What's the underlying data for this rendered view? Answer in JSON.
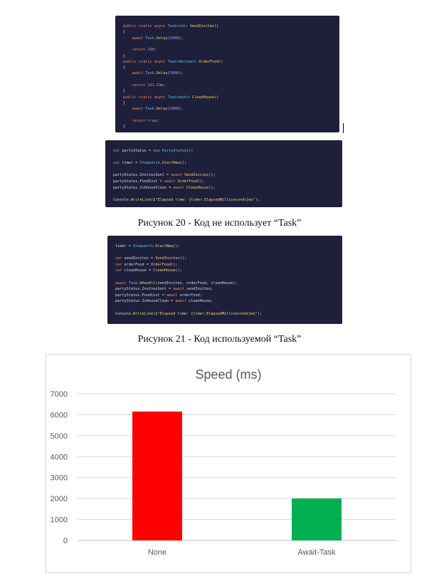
{
  "code_block_1": {
    "lines": [
      [
        [
          "public static async ",
          "kw"
        ],
        [
          "Task<int>",
          "ty"
        ],
        [
          " SendInvites()",
          "fn"
        ]
      ],
      [
        [
          "{",
          ""
        ]
      ],
      [
        [
          "    await ",
          "kw"
        ],
        [
          "Task",
          "ty"
        ],
        [
          ".",
          ""
        ],
        [
          "Delay",
          "fn"
        ],
        [
          "(",
          ""
        ],
        [
          "2000",
          "nm"
        ],
        [
          ");",
          ""
        ]
      ],
      [
        [
          "",
          ""
        ]
      ],
      [
        [
          "    return ",
          "kw"
        ],
        [
          "100",
          "nm"
        ],
        [
          ";",
          ""
        ]
      ],
      [
        [
          "}",
          ""
        ]
      ],
      [
        [
          "public static async ",
          "kw"
        ],
        [
          "Task<decimal>",
          "ty"
        ],
        [
          " OrderFood()",
          "fn"
        ]
      ],
      [
        [
          "{",
          ""
        ]
      ],
      [
        [
          "    await ",
          "kw"
        ],
        [
          "Task",
          "ty"
        ],
        [
          ".",
          ""
        ],
        [
          "Delay",
          "fn"
        ],
        [
          "(",
          ""
        ],
        [
          "3000",
          "nm"
        ],
        [
          ");",
          ""
        ]
      ],
      [
        [
          "",
          ""
        ]
      ],
      [
        [
          "    return ",
          "kw"
        ],
        [
          "121.23m",
          "nm"
        ],
        [
          ";",
          ""
        ]
      ],
      [
        [
          "}",
          ""
        ]
      ],
      [
        [
          "public static async ",
          "kw"
        ],
        [
          "Task<bool>",
          "ty"
        ],
        [
          " CleanHouse()",
          "fn"
        ]
      ],
      [
        [
          "{",
          ""
        ]
      ],
      [
        [
          "    await ",
          "kw"
        ],
        [
          "Task",
          "ty"
        ],
        [
          ".",
          ""
        ],
        [
          "Delay",
          "fn"
        ],
        [
          "(",
          ""
        ],
        [
          "2000",
          "nm"
        ],
        [
          ");",
          ""
        ]
      ],
      [
        [
          "",
          ""
        ]
      ],
      [
        [
          "    return ",
          "kw"
        ],
        [
          "true",
          "nm"
        ],
        [
          ";",
          ""
        ]
      ],
      [
        [
          "}",
          ""
        ]
      ]
    ]
  },
  "code_block_2": {
    "lines": [
      [
        [
          "var ",
          "kw"
        ],
        [
          "partyStatus = ",
          ""
        ],
        [
          "new ",
          "kw"
        ],
        [
          "PartyStatus",
          "ty"
        ],
        [
          "();",
          ""
        ]
      ],
      [
        [
          "",
          ""
        ]
      ],
      [
        [
          "var ",
          "kw"
        ],
        [
          "timer = ",
          ""
        ],
        [
          "Stopwatch",
          "ty"
        ],
        [
          ".",
          ""
        ],
        [
          "StartNew",
          "fn"
        ],
        [
          "();",
          ""
        ]
      ],
      [
        [
          "",
          ""
        ]
      ],
      [
        [
          "partyStatus.InvitesSent = ",
          ""
        ],
        [
          "await ",
          "kw"
        ],
        [
          "SendInvites",
          "fn"
        ],
        [
          "();",
          ""
        ]
      ],
      [
        [
          "partyStatus.FoodCost = ",
          ""
        ],
        [
          "await ",
          "kw"
        ],
        [
          "OrderFood",
          "fn"
        ],
        [
          "();",
          ""
        ]
      ],
      [
        [
          "partyStatus.IsHouseClean = ",
          ""
        ],
        [
          "await ",
          "kw"
        ],
        [
          "CleanHouse",
          "fn"
        ],
        [
          "();",
          ""
        ]
      ],
      [
        [
          "",
          ""
        ]
      ],
      [
        [
          "Console",
          ""
        ],
        [
          ".",
          ""
        ],
        [
          "WriteLine",
          "fn"
        ],
        [
          "($\"Elapsed time: {timer.ElapsedMilliseconds}ms\");",
          "st"
        ]
      ]
    ]
  },
  "caption_1": "Рисунок 20 - Код не использует “Task”",
  "code_block_3": {
    "lines": [
      [
        [
          "timer = ",
          ""
        ],
        [
          "Stopwatch",
          "ty"
        ],
        [
          ".",
          ""
        ],
        [
          "StartNew",
          "fn"
        ],
        [
          "();",
          ""
        ]
      ],
      [
        [
          "",
          ""
        ]
      ],
      [
        [
          "var ",
          "kw"
        ],
        [
          "sendInvites = ",
          ""
        ],
        [
          "SendInvites",
          "fn"
        ],
        [
          "();",
          ""
        ]
      ],
      [
        [
          "var ",
          "kw"
        ],
        [
          "orderFood = ",
          ""
        ],
        [
          "OrderFood",
          "fn"
        ],
        [
          "();",
          ""
        ]
      ],
      [
        [
          "var ",
          "kw"
        ],
        [
          "cleanHouse = ",
          ""
        ],
        [
          "CleanHouse",
          "fn"
        ],
        [
          "();",
          ""
        ]
      ],
      [
        [
          "",
          ""
        ]
      ],
      [
        [
          "await ",
          "kw"
        ],
        [
          "Task",
          "ty"
        ],
        [
          ".",
          ""
        ],
        [
          "WhenAll",
          "fn"
        ],
        [
          "(sendInvites, orderFood, cleanHouse);",
          ""
        ]
      ],
      [
        [
          "partyStatus.InvitesSent = ",
          ""
        ],
        [
          "await ",
          "kw"
        ],
        [
          "sendInvites;",
          ""
        ]
      ],
      [
        [
          "partyStatus.FoodCost = ",
          ""
        ],
        [
          "await ",
          "kw"
        ],
        [
          "orderFood;",
          ""
        ]
      ],
      [
        [
          "partyStatus.IsHouseClean = ",
          ""
        ],
        [
          "await ",
          "kw"
        ],
        [
          "cleanHouse;",
          ""
        ]
      ],
      [
        [
          "",
          ""
        ]
      ],
      [
        [
          "Console",
          ""
        ],
        [
          ".",
          ""
        ],
        [
          "WriteLine",
          "fn"
        ],
        [
          "($\"Elapsed time: {timer.ElapsedMilliseconds}ms\");",
          "st"
        ]
      ]
    ]
  },
  "caption_2": "Рисунок 21 - Код используемой “Task”",
  "chart_data": {
    "type": "bar",
    "title": "Speed (ms)",
    "categories": [
      "None",
      "Await-Task"
    ],
    "values": [
      6150,
      2000
    ],
    "colors": [
      "#ff0000",
      "#00b050"
    ],
    "ylim": [
      0,
      7000
    ],
    "yticks": [
      0,
      1000,
      2000,
      3000,
      4000,
      5000,
      6000,
      7000
    ],
    "grid": true,
    "xlabel": "",
    "ylabel": ""
  }
}
